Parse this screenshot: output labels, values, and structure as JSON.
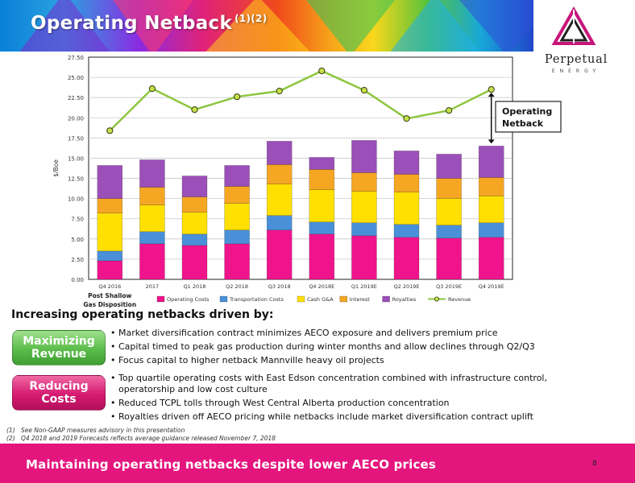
{
  "header": {
    "title": "Operating Netback",
    "title_superscript": "(1)(2)"
  },
  "logo": {
    "wordmark": "Perpetual",
    "subtext": "ENERGY"
  },
  "chart_data": {
    "type": "bar",
    "stacked": true,
    "categories": [
      "Q4 2016",
      "2017",
      "Q1 2018",
      "Q2 2018",
      "Q3 2018",
      "Q4 2018E",
      "Q1 2019E",
      "Q2 2019E",
      "Q3 2019E",
      "Q4 2019E"
    ],
    "category_note": {
      "category": "Q4 2016",
      "text": "Post Shallow Gas Disposition"
    },
    "ylabel": "$/Boe",
    "ylim": [
      0,
      27.5
    ],
    "yticks": [
      "0.00",
      "2.50",
      "5.00",
      "7.50",
      "10.00",
      "12.50",
      "15.00",
      "17.50",
      "20.00",
      "22.50",
      "25.00",
      "27.50"
    ],
    "grid": true,
    "legend_position": "bottom",
    "series": [
      {
        "name": "Operating Costs",
        "type": "bar",
        "color": "#f0148c",
        "values": [
          2.3,
          4.4,
          4.2,
          4.4,
          6.1,
          5.6,
          5.4,
          5.2,
          5.1,
          5.2
        ]
      },
      {
        "name": "Transportation Costs",
        "type": "bar",
        "color": "#4a90d9",
        "values": [
          1.2,
          1.5,
          1.4,
          1.7,
          1.8,
          1.5,
          1.6,
          1.6,
          1.6,
          1.8
        ]
      },
      {
        "name": "Cash G&A",
        "type": "bar",
        "color": "#ffe000",
        "values": [
          4.7,
          3.3,
          2.7,
          3.3,
          3.9,
          4.0,
          3.9,
          4.0,
          3.3,
          3.3
        ]
      },
      {
        "name": "Interest",
        "type": "bar",
        "color": "#f5a623",
        "values": [
          1.8,
          2.2,
          1.9,
          2.1,
          2.4,
          2.5,
          2.3,
          2.2,
          2.5,
          2.3
        ]
      },
      {
        "name": "Royalties",
        "type": "bar",
        "color": "#9b4fb8",
        "values": [
          4.1,
          3.4,
          2.6,
          2.6,
          2.9,
          1.5,
          4.0,
          2.9,
          3.0,
          3.9
        ]
      },
      {
        "name": "Revenue",
        "type": "line",
        "color": "#8dc63f",
        "values": [
          18.4,
          23.6,
          21.0,
          22.6,
          23.3,
          25.8,
          23.4,
          19.9,
          20.9,
          23.5
        ]
      }
    ],
    "annotation": {
      "text": "Operating Netback",
      "category": "Q4 2019E"
    }
  },
  "section": {
    "heading": "Increasing operating netbacks driven by:",
    "groups": [
      {
        "label": "Maximizing Revenue",
        "bullets": [
          "Market diversification contract minimizes AECO exposure and delivers premium price",
          "Capital timed to peak gas production during winter months and allow declines through Q2/Q3",
          "Focus capital to higher netback Mannville heavy oil projects"
        ]
      },
      {
        "label": "Reducing Costs",
        "bullets": [
          "Top quartile operating costs with East Edson concentration combined with infrastructure control, operatorship and low cost culture",
          "Reduced TCPL tolls through West Central Alberta production concentration",
          "Royalties driven off AECO pricing while netbacks include market diversification contract uplift"
        ]
      }
    ]
  },
  "footnotes": [
    {
      "num": "(1)",
      "text": "See Non-GAAP measures advisory in this presentation"
    },
    {
      "num": "(2)",
      "text": "Q4 2018 and 2019 Forecasts reflects  average guidance released November 7, 2018"
    }
  ],
  "footer": {
    "text": "Maintaining operating netbacks despite lower AECO prices",
    "page_number": "8"
  }
}
